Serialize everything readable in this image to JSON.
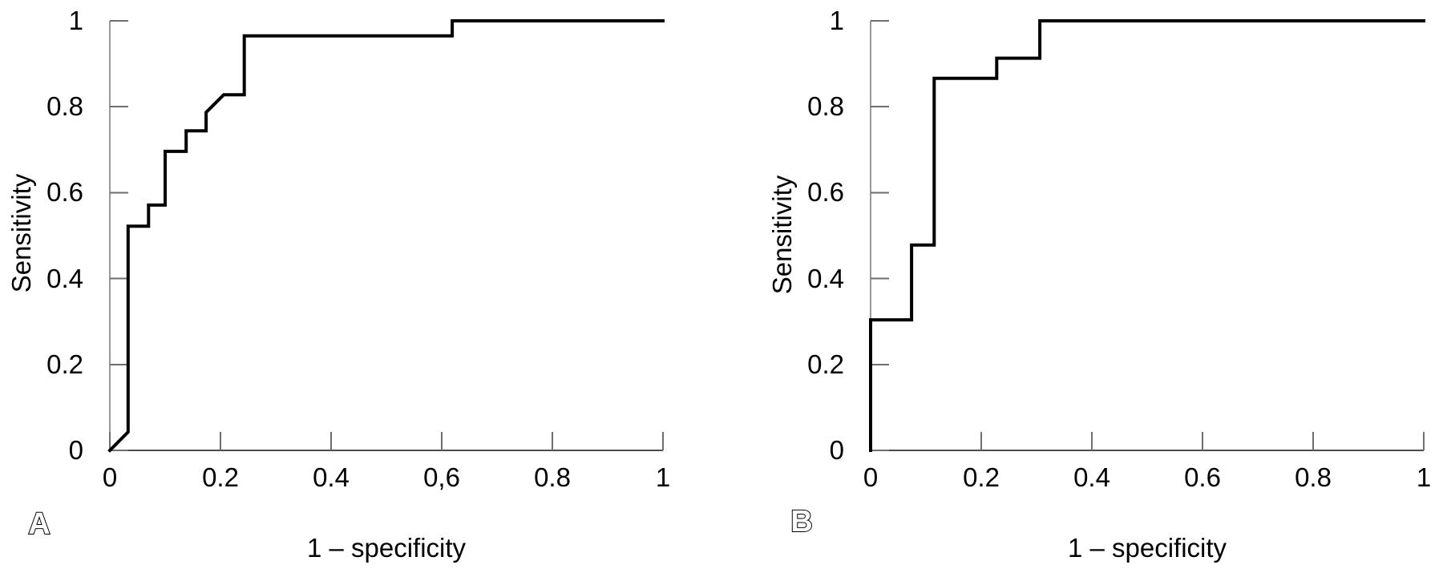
{
  "colors": {
    "curve": "#000000",
    "y_axis_line": "#999999",
    "x_axis_line": "#4d4d4d",
    "tick": "#6e6e6e",
    "text": "#000000"
  },
  "figure": {
    "panels": [
      {
        "letter": "A",
        "x_axis": {
          "title": "1 – specificity",
          "tick_labels": [
            "0",
            "0.2",
            "0.4",
            "0,6",
            "0.8",
            "1"
          ]
        },
        "y_axis": {
          "title": "Sensitivity",
          "tick_labels": [
            "0",
            "0.2",
            "0.4",
            "0.6",
            "0.8",
            "1"
          ]
        }
      },
      {
        "letter": "B",
        "x_axis": {
          "title": "1 – specificity",
          "tick_labels": [
            "0",
            "0.2",
            "0.4",
            "0.6",
            "0.8",
            "1"
          ]
        },
        "y_axis": {
          "title": "Sensitivity",
          "tick_labels": [
            "0",
            "0.2",
            "0.4",
            "0.6",
            "0.8",
            "1"
          ]
        }
      }
    ]
  },
  "chart_data": [
    {
      "type": "line",
      "subtype": "roc-step-curve",
      "panel": "A",
      "xlabel": "1 – specificity",
      "ylabel": "Sensitivity",
      "xlim": [
        0,
        1
      ],
      "ylim": [
        0,
        1
      ],
      "grid": false,
      "x_tick_values": [
        0,
        0.2,
        0.4,
        0.6,
        0.8,
        1
      ],
      "y_tick_values": [
        0,
        0.2,
        0.4,
        0.6,
        0.8,
        1
      ],
      "points": [
        [
          0,
          0
        ],
        [
          0.033,
          0.043
        ],
        [
          0.033,
          0.522
        ],
        [
          0.07,
          0.522
        ],
        [
          0.07,
          0.571
        ],
        [
          0.1,
          0.571
        ],
        [
          0.1,
          0.696
        ],
        [
          0.138,
          0.696
        ],
        [
          0.138,
          0.744
        ],
        [
          0.174,
          0.744
        ],
        [
          0.174,
          0.787
        ],
        [
          0.206,
          0.828
        ],
        [
          0.243,
          0.828
        ],
        [
          0.243,
          0.965
        ],
        [
          0.619,
          0.965
        ],
        [
          0.619,
          1
        ],
        [
          1,
          1
        ]
      ]
    },
    {
      "type": "line",
      "subtype": "roc-step-curve",
      "panel": "B",
      "xlabel": "1 – specificity",
      "ylabel": "Sensitivity",
      "xlim": [
        0,
        1
      ],
      "ylim": [
        0,
        1
      ],
      "grid": false,
      "x_tick_values": [
        0,
        0.2,
        0.4,
        0.6,
        0.8,
        1
      ],
      "y_tick_values": [
        0,
        0.2,
        0.4,
        0.6,
        0.8,
        1
      ],
      "points": [
        [
          0,
          0
        ],
        [
          0,
          0.304
        ],
        [
          0.074,
          0.304
        ],
        [
          0.074,
          0.478
        ],
        [
          0.115,
          0.478
        ],
        [
          0.115,
          0.866
        ],
        [
          0.228,
          0.866
        ],
        [
          0.228,
          0.913
        ],
        [
          0.306,
          0.913
        ],
        [
          0.306,
          1
        ],
        [
          1,
          1
        ]
      ]
    }
  ]
}
